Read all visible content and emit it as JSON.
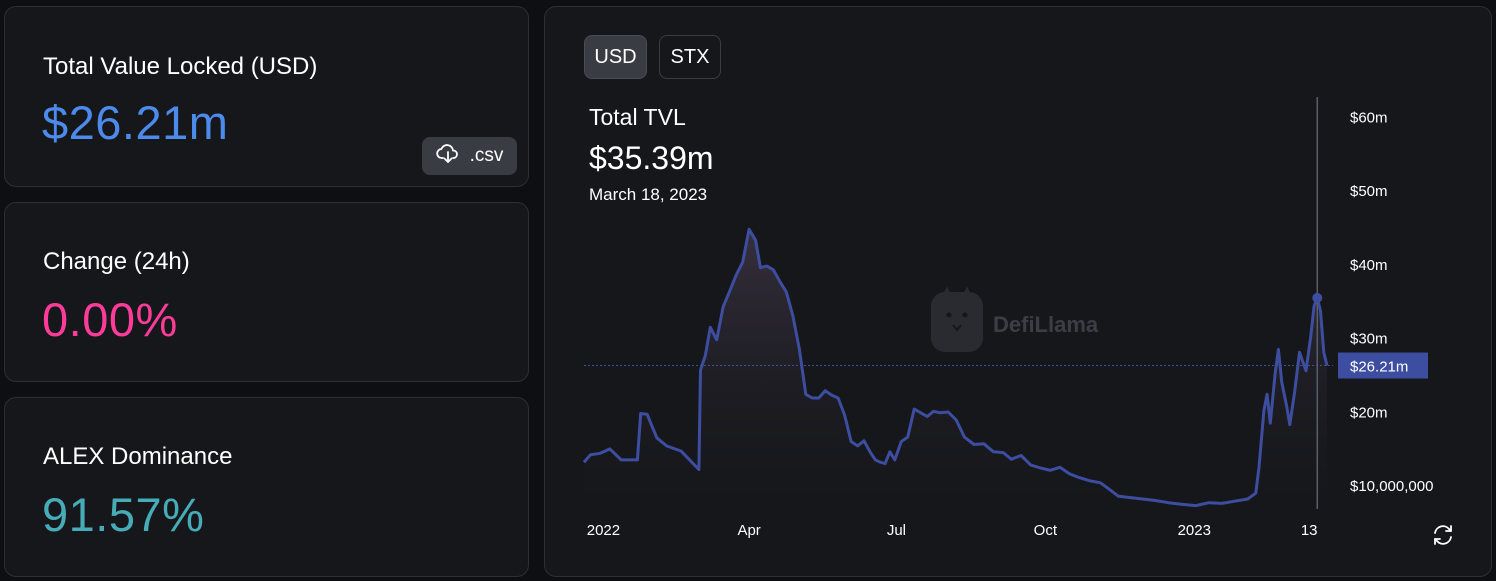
{
  "tvl_card": {
    "label": "Total Value Locked (USD)",
    "value": "$26.21m",
    "value_color": "#4c8bec",
    "csv_label": ".csv",
    "csv_icon": "cloud-download-icon"
  },
  "change_card": {
    "label": "Change (24h)",
    "value": "0.00%",
    "value_color": "#fd3c99"
  },
  "dominance_card": {
    "label": "ALEX Dominance",
    "value": "91.57%",
    "value_color": "#46acb7"
  },
  "toggles": {
    "usd": "USD",
    "stx": "STX",
    "active": "USD"
  },
  "tooltip": {
    "title": "Total TVL",
    "value": "$35.39m",
    "date": "March 18, 2023"
  },
  "watermark": {
    "text": "DefiLlama",
    "icon": "llama-logo-icon"
  },
  "refresh_icon": "refresh-icon",
  "chart_data": {
    "type": "area",
    "series_color": "#3d4ea0",
    "current_value_label": "$26.21m",
    "current_value": 26.21,
    "hover_point": {
      "x": "2023-03-18",
      "y": 35.39
    },
    "y_ticks": [
      "$60m",
      "$50m",
      "$40m",
      "$30m",
      "$20m",
      "$10,000,000"
    ],
    "y_tick_values": [
      60,
      50,
      40,
      30,
      20,
      10
    ],
    "x_ticks": [
      "2022",
      "Apr",
      "Jul",
      "Oct",
      "2023",
      "13"
    ],
    "x_tick_dates": [
      "2022-01-01",
      "2022-04-01",
      "2022-07-01",
      "2022-10-01",
      "2023-01-01",
      "2023-03-13"
    ],
    "x_range": [
      "2021-12-20",
      "2023-03-24"
    ],
    "y_unit": "USD millions",
    "points": [
      [
        "2021-12-20",
        13.1
      ],
      [
        "2021-12-24",
        14.1
      ],
      [
        "2021-12-30",
        14.3
      ],
      [
        "2022-01-05",
        14.9
      ],
      [
        "2022-01-12",
        13.4
      ],
      [
        "2022-01-22",
        13.4
      ],
      [
        "2022-01-24",
        19.7
      ],
      [
        "2022-01-28",
        19.6
      ],
      [
        "2022-02-03",
        16.4
      ],
      [
        "2022-02-09",
        15.3
      ],
      [
        "2022-02-18",
        14.6
      ],
      [
        "2022-02-25",
        13.0
      ],
      [
        "2022-03-01",
        12.1
      ],
      [
        "2022-03-02",
        25.6
      ],
      [
        "2022-03-05",
        27.6
      ],
      [
        "2022-03-08",
        31.4
      ],
      [
        "2022-03-12",
        29.7
      ],
      [
        "2022-03-16",
        34.2
      ],
      [
        "2022-03-20",
        36.3
      ],
      [
        "2022-03-24",
        38.5
      ],
      [
        "2022-03-28",
        40.2
      ],
      [
        "2022-04-01",
        44.7
      ],
      [
        "2022-04-05",
        43.2
      ],
      [
        "2022-04-08",
        39.5
      ],
      [
        "2022-04-12",
        39.7
      ],
      [
        "2022-04-16",
        39.2
      ],
      [
        "2022-04-20",
        37.6
      ],
      [
        "2022-04-24",
        36.2
      ],
      [
        "2022-04-28",
        33.0
      ],
      [
        "2022-05-02",
        28.5
      ],
      [
        "2022-05-06",
        22.3
      ],
      [
        "2022-05-10",
        21.8
      ],
      [
        "2022-05-14",
        21.8
      ],
      [
        "2022-05-18",
        22.8
      ],
      [
        "2022-05-22",
        22.2
      ],
      [
        "2022-05-26",
        21.8
      ],
      [
        "2022-05-30",
        19.5
      ],
      [
        "2022-06-03",
        15.9
      ],
      [
        "2022-06-07",
        15.3
      ],
      [
        "2022-06-11",
        16.0
      ],
      [
        "2022-06-15",
        14.4
      ],
      [
        "2022-06-18",
        13.4
      ],
      [
        "2022-06-21",
        13.1
      ],
      [
        "2022-06-24",
        12.9
      ],
      [
        "2022-06-27",
        14.5
      ],
      [
        "2022-06-30",
        13.4
      ],
      [
        "2022-07-04",
        15.9
      ],
      [
        "2022-07-08",
        16.5
      ],
      [
        "2022-07-12",
        20.3
      ],
      [
        "2022-07-16",
        19.8
      ],
      [
        "2022-07-20",
        19.3
      ],
      [
        "2022-07-24",
        20.0
      ],
      [
        "2022-07-28",
        19.8
      ],
      [
        "2022-08-02",
        19.9
      ],
      [
        "2022-08-07",
        18.8
      ],
      [
        "2022-08-12",
        16.5
      ],
      [
        "2022-08-18",
        15.5
      ],
      [
        "2022-08-24",
        15.6
      ],
      [
        "2022-08-30",
        14.5
      ],
      [
        "2022-09-05",
        14.4
      ],
      [
        "2022-09-10",
        13.5
      ],
      [
        "2022-09-16",
        14.0
      ],
      [
        "2022-09-22",
        12.7
      ],
      [
        "2022-09-28",
        12.3
      ],
      [
        "2022-10-04",
        12.0
      ],
      [
        "2022-10-10",
        12.4
      ],
      [
        "2022-10-16",
        11.5
      ],
      [
        "2022-10-22",
        11.0
      ],
      [
        "2022-10-28",
        10.6
      ],
      [
        "2022-11-04",
        10.3
      ],
      [
        "2022-11-09",
        9.5
      ],
      [
        "2022-11-15",
        8.5
      ],
      [
        "2022-11-22",
        8.3
      ],
      [
        "2022-11-30",
        8.1
      ],
      [
        "2022-12-08",
        7.9
      ],
      [
        "2022-12-16",
        7.6
      ],
      [
        "2022-12-24",
        7.4
      ],
      [
        "2023-01-02",
        7.2
      ],
      [
        "2023-01-10",
        7.6
      ],
      [
        "2023-01-18",
        7.5
      ],
      [
        "2023-01-26",
        7.8
      ],
      [
        "2023-02-03",
        8.1
      ],
      [
        "2023-02-08",
        8.9
      ],
      [
        "2023-02-10",
        12.4
      ],
      [
        "2023-02-13",
        20.1
      ],
      [
        "2023-02-15",
        22.3
      ],
      [
        "2023-02-17",
        18.4
      ],
      [
        "2023-02-20",
        25.2
      ],
      [
        "2023-02-22",
        28.4
      ],
      [
        "2023-02-24",
        24.0
      ],
      [
        "2023-02-27",
        20.8
      ],
      [
        "2023-03-01",
        18.2
      ],
      [
        "2023-03-04",
        22.6
      ],
      [
        "2023-03-07",
        28.0
      ],
      [
        "2023-03-11",
        25.5
      ],
      [
        "2023-03-14",
        30.2
      ],
      [
        "2023-03-16",
        34.3
      ],
      [
        "2023-03-18",
        35.4
      ],
      [
        "2023-03-20",
        33.6
      ],
      [
        "2023-03-22",
        28.0
      ],
      [
        "2023-03-24",
        26.2
      ]
    ]
  }
}
